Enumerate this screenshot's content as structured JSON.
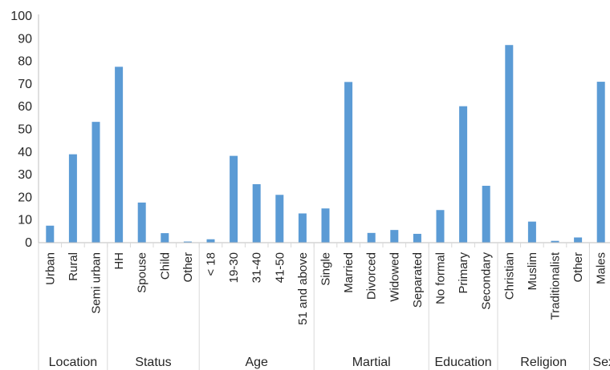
{
  "colors": {
    "bar": "#5b9bd5",
    "axis": "#bfbfbf",
    "text": "#262626"
  },
  "chart_data": {
    "type": "bar",
    "title": "",
    "xlabel": "",
    "ylabel": "",
    "ylim": [
      0,
      100
    ],
    "yticks": [
      "0",
      "10",
      "20",
      "30",
      "40",
      "50",
      "60",
      "70",
      "80",
      "90",
      "100"
    ],
    "grid": false,
    "legend": "none",
    "groups": [
      {
        "name": "Location",
        "categories": [
          "Urban",
          "Rural",
          "Semi urban"
        ],
        "values": [
          7.5,
          39,
          53.3
        ]
      },
      {
        "name": "Status",
        "categories": [
          "HH",
          "Spouse",
          "Child",
          "Other"
        ],
        "values": [
          77.6,
          17.7,
          4.2,
          0.5
        ]
      },
      {
        "name": "Age",
        "categories": [
          "< 18",
          "19-30",
          "31-40",
          "41-50",
          "51 and above"
        ],
        "values": [
          1.5,
          38.3,
          25.8,
          21.1,
          12.9
        ]
      },
      {
        "name": "Martial",
        "categories": [
          "Single",
          "Married",
          "Divorced",
          "Widowed",
          "Separated"
        ],
        "values": [
          15.1,
          70.9,
          4.3,
          5.6,
          3.9
        ]
      },
      {
        "name": "Education",
        "categories": [
          "No formal",
          "Primary",
          "Secondary"
        ],
        "values": [
          14.4,
          60.2,
          25.1
        ]
      },
      {
        "name": "Religion",
        "categories": [
          "Christian",
          "Muslim",
          "Traditionalist",
          "Other"
        ],
        "values": [
          87.2,
          9.3,
          0.8,
          2.3
        ]
      },
      {
        "name": "Sex",
        "categories": [
          "Males"
        ],
        "values": [
          71
        ]
      }
    ]
  }
}
